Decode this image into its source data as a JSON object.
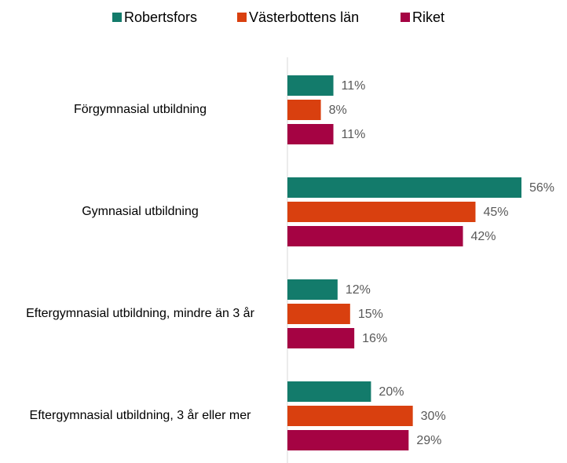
{
  "chart_data": {
    "type": "bar",
    "orientation": "horizontal",
    "categories": [
      "Förgymnasial utbildning",
      "Gymnasial utbildning",
      "Eftergymnasial utbildning, mindre än 3 år",
      "Eftergymnasial utbildning, 3 år eller mer"
    ],
    "series": [
      {
        "name": "Robertsfors",
        "color": "#137b6b",
        "values": [
          11,
          56,
          12,
          20
        ],
        "value_labels": [
          "11%",
          "56%",
          "12%",
          "20%"
        ]
      },
      {
        "name": "Västerbottens län",
        "color": "#d9400f",
        "values": [
          8,
          45,
          15,
          30
        ],
        "value_labels": [
          "8%",
          "45%",
          "15%",
          "30%"
        ]
      },
      {
        "name": "Riket",
        "color": "#a50343",
        "values": [
          11,
          42,
          16,
          29
        ],
        "value_labels": [
          "11%",
          "42%",
          "16%",
          "29%"
        ]
      }
    ],
    "legend": "top"
  }
}
